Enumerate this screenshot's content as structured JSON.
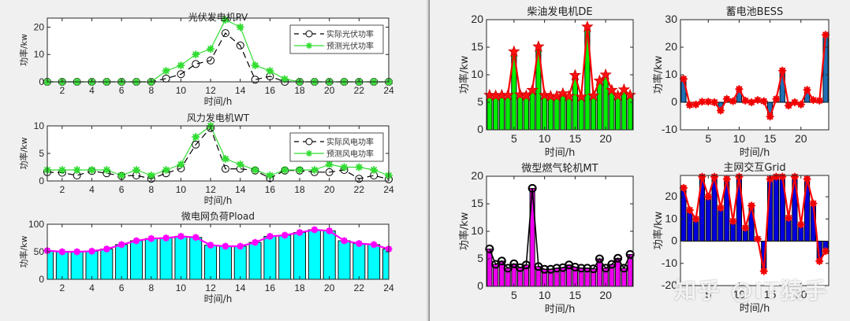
{
  "chart_data": [
    {
      "id": "pv",
      "type": "line",
      "title": "光伏发电机PV",
      "xlabel": "时间/h",
      "ylabel": "功率/kw",
      "x": [
        1,
        2,
        3,
        4,
        5,
        6,
        7,
        8,
        9,
        10,
        11,
        12,
        13,
        14,
        15,
        16,
        17,
        18,
        19,
        20,
        21,
        22,
        23,
        24
      ],
      "xticks": [
        2,
        4,
        6,
        8,
        10,
        12,
        14,
        16,
        18,
        20,
        22,
        24
      ],
      "yticks": [
        0,
        10,
        20
      ],
      "ylim": [
        0,
        23.3
      ],
      "legend_position": "northeast",
      "series": [
        {
          "name": "实际光伏功率",
          "style": "black dashed, circle markers",
          "color": "#000000",
          "values": [
            0,
            0,
            0,
            0,
            0,
            0,
            0,
            0,
            1.2,
            2.8,
            6.5,
            7.8,
            17.8,
            13.3,
            0.8,
            2.0,
            0,
            0,
            0,
            0,
            0,
            0,
            0,
            0
          ]
        },
        {
          "name": "预测光伏功率",
          "style": "green solid, star markers",
          "color": "#33dd33",
          "values": [
            0,
            0,
            0,
            0,
            0,
            0,
            0,
            0,
            4.0,
            6.0,
            10.0,
            12.0,
            22.7,
            20.0,
            6.0,
            4.0,
            1.0,
            0,
            0,
            0,
            0,
            0,
            0,
            0
          ]
        }
      ]
    },
    {
      "id": "wt",
      "type": "line",
      "title": "风力发电机WT",
      "xlabel": "时间/h",
      "ylabel": "功率/kw",
      "x": [
        1,
        2,
        3,
        4,
        5,
        6,
        7,
        8,
        9,
        10,
        11,
        12,
        13,
        14,
        15,
        16,
        17,
        18,
        19,
        20,
        21,
        22,
        23,
        24
      ],
      "xticks": [
        2,
        4,
        6,
        8,
        10,
        12,
        14,
        16,
        18,
        20,
        22,
        24
      ],
      "yticks": [
        0,
        5,
        10
      ],
      "ylim": [
        0,
        10
      ],
      "legend_position": "northeast",
      "series": [
        {
          "name": "实际风电功率",
          "style": "black dashed, circle markers",
          "color": "#000000",
          "values": [
            1.6,
            1.5,
            1.0,
            1.8,
            1.4,
            0.9,
            1.0,
            0.4,
            1.4,
            2.3,
            6.6,
            9.6,
            2.2,
            2.2,
            1.9,
            0.5,
            1.9,
            1.9,
            1.6,
            1.6,
            2.0,
            0.4,
            1.0,
            0.3
          ]
        },
        {
          "name": "预测风电功率",
          "style": "green solid, star markers",
          "color": "#33dd33",
          "values": [
            2.0,
            2.0,
            2.0,
            2.0,
            2.0,
            1.0,
            2.0,
            1.0,
            2.0,
            3.0,
            8.0,
            10.0,
            4.0,
            3.0,
            2.0,
            1.0,
            2.0,
            2.0,
            2.0,
            3.0,
            2.5,
            2.5,
            2.0,
            1.0
          ]
        }
      ]
    },
    {
      "id": "pload",
      "type": "bar",
      "title": "微电网负荷Pload",
      "xlabel": "时间/h",
      "ylabel": "功率/kw",
      "categories": [
        1,
        2,
        3,
        4,
        5,
        6,
        7,
        8,
        9,
        10,
        11,
        12,
        13,
        14,
        15,
        16,
        17,
        18,
        19,
        20,
        21,
        22,
        23,
        24
      ],
      "xticks": [
        2,
        4,
        6,
        8,
        10,
        12,
        14,
        16,
        18,
        20,
        22,
        24
      ],
      "yticks": [
        0,
        50,
        100
      ],
      "ylim": [
        0,
        100
      ],
      "bar_color": "#00ffff",
      "line_color": "#ff00ff",
      "values": [
        52,
        50,
        50,
        51,
        55,
        63,
        70,
        74,
        75,
        78,
        76,
        62,
        60,
        60,
        67,
        78,
        80,
        85,
        90,
        88,
        70,
        65,
        63,
        55
      ]
    },
    {
      "id": "de",
      "type": "bar",
      "title": "柴油发电机DE",
      "xlabel": "时间/h",
      "ylabel": "功率/kw",
      "categories": [
        1,
        2,
        3,
        4,
        5,
        6,
        7,
        8,
        9,
        10,
        11,
        12,
        13,
        14,
        15,
        16,
        17,
        18,
        19,
        20,
        21,
        22,
        23,
        24
      ],
      "xticks": [
        5,
        10,
        15,
        20
      ],
      "yticks": [
        0,
        5,
        10,
        15,
        20
      ],
      "ylim": [
        0,
        20
      ],
      "bar_color": "#00ee00",
      "line_color": "#ff0000",
      "values": [
        6.3,
        6.2,
        6.3,
        6.3,
        14.2,
        6.4,
        6.2,
        7.2,
        15.1,
        6.3,
        6.1,
        6.1,
        6.6,
        6.1,
        9.9,
        6.0,
        18.7,
        6.2,
        8.9,
        10.0,
        7.2,
        6.2,
        7.3,
        6.3
      ]
    },
    {
      "id": "bess",
      "type": "bar",
      "title": "蓄电池BESS",
      "xlabel": "时间/h",
      "ylabel": "功率/kw",
      "categories": [
        1,
        2,
        3,
        4,
        5,
        6,
        7,
        8,
        9,
        10,
        11,
        12,
        13,
        14,
        15,
        16,
        17,
        18,
        19,
        20,
        21,
        22,
        23,
        24
      ],
      "xticks": [
        5,
        10,
        15,
        20
      ],
      "yticks": [
        -10,
        0,
        10,
        20,
        30
      ],
      "ylim": [
        -10,
        30
      ],
      "bar_color": "#1f6fb4",
      "line_color": "#ff0000",
      "values": [
        8.5,
        -1.0,
        -0.8,
        0.2,
        0.2,
        0,
        -3.0,
        1.2,
        0.4,
        4.8,
        0.6,
        0,
        0.8,
        0.4,
        -5.2,
        1.2,
        11.5,
        -1.2,
        0,
        -0.8,
        4.5,
        0.8,
        0.6,
        24.5
      ]
    },
    {
      "id": "mt",
      "type": "bar",
      "title": "微型燃气轮机MT",
      "xlabel": "时间/h",
      "ylabel": "功率/kw",
      "categories": [
        1,
        2,
        3,
        4,
        5,
        6,
        7,
        8,
        9,
        10,
        11,
        12,
        13,
        14,
        15,
        16,
        17,
        18,
        19,
        20,
        21,
        22,
        23,
        24
      ],
      "xticks": [
        5,
        10,
        15,
        20
      ],
      "yticks": [
        0,
        5,
        10,
        15,
        20
      ],
      "ylim": [
        0,
        20
      ],
      "bar_color": "#ee00ee",
      "line_color": "#000000",
      "values": [
        6.8,
        4.0,
        4.6,
        3.3,
        4.1,
        3.4,
        3.9,
        17.8,
        3.6,
        3.1,
        3.1,
        3.3,
        3.4,
        3.9,
        3.5,
        3.3,
        3.3,
        3.2,
        5.0,
        3.3,
        4.0,
        5.1,
        3.3,
        5.8
      ]
    },
    {
      "id": "grid",
      "type": "bar",
      "title": "主网交互Grid",
      "xlabel": "时间/h",
      "ylabel": "功率/kw",
      "categories": [
        1,
        2,
        3,
        4,
        5,
        6,
        7,
        8,
        9,
        10,
        11,
        12,
        13,
        14,
        15,
        16,
        17,
        18,
        19,
        20,
        21,
        22,
        23,
        24
      ],
      "xticks": [
        5,
        10,
        15,
        20
      ],
      "yticks": [
        -20,
        -10,
        0,
        10,
        20
      ],
      "ylim": [
        -20,
        29.6
      ],
      "bar_color": "#0000dd",
      "line_color": "#ff0000",
      "values": [
        24,
        14,
        10,
        29,
        20,
        29,
        15,
        28,
        9,
        29,
        6,
        16,
        1,
        -13.5,
        28,
        29,
        29,
        10.5,
        29,
        7.5,
        28,
        17,
        -9,
        -4.5
      ]
    }
  ],
  "watermark": "知乎 @IT猿手"
}
